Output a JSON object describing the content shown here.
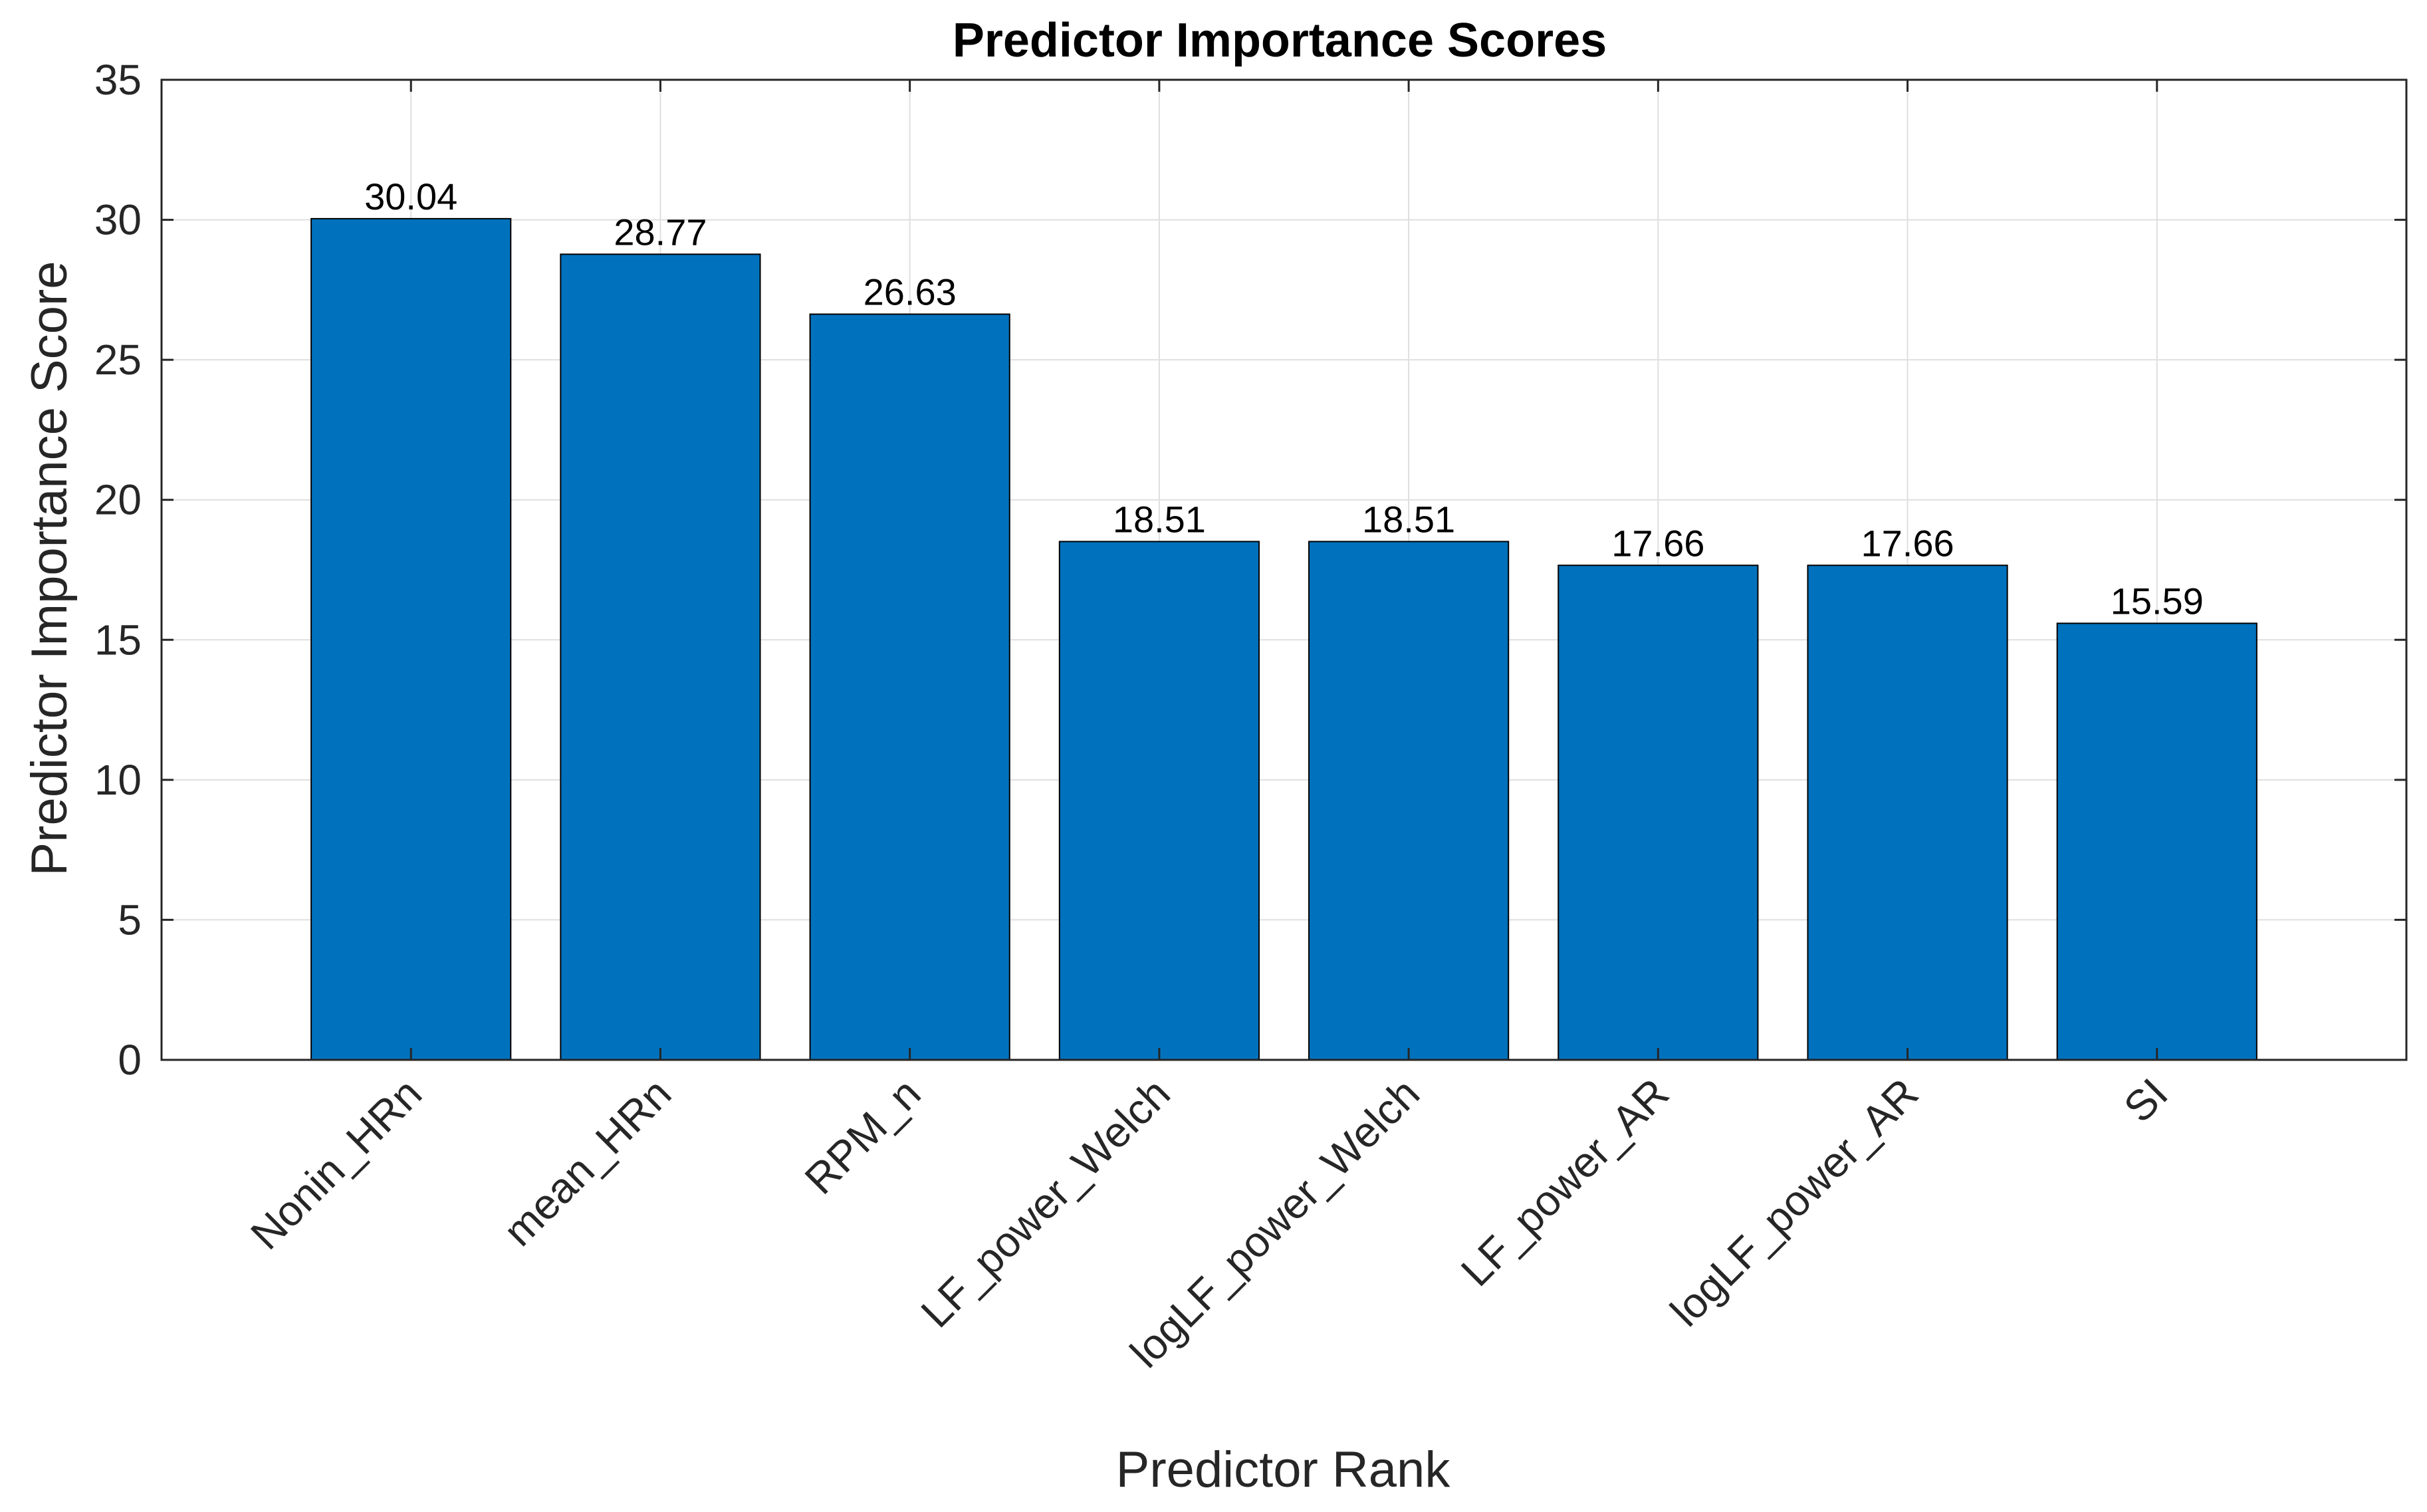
{
  "chart_data": {
    "type": "bar",
    "title": "Predictor Importance Scores",
    "xlabel": "Predictor Rank",
    "ylabel": "Predictor Importance Score",
    "categories": [
      "Nonin_HRn",
      "mean_HRn",
      "RPM_n",
      "LF_power_Welch",
      "logLF_power_Welch",
      "LF_power_AR",
      "logLF_power_AR",
      "SI"
    ],
    "values": [
      30.04,
      28.77,
      26.63,
      18.51,
      18.51,
      17.66,
      17.66,
      15.59
    ],
    "data_labels": [
      "30.04",
      "28.77",
      "26.63",
      "18.51",
      "18.51",
      "17.66",
      "17.66",
      "15.59"
    ],
    "ylim": [
      0,
      35
    ],
    "yticks": [
      0,
      5,
      10,
      15,
      20,
      25,
      30,
      35
    ],
    "grid": true,
    "bar_color": "#0072BD",
    "grid_color": "#dfdfdf",
    "axis_color": "#262626"
  }
}
